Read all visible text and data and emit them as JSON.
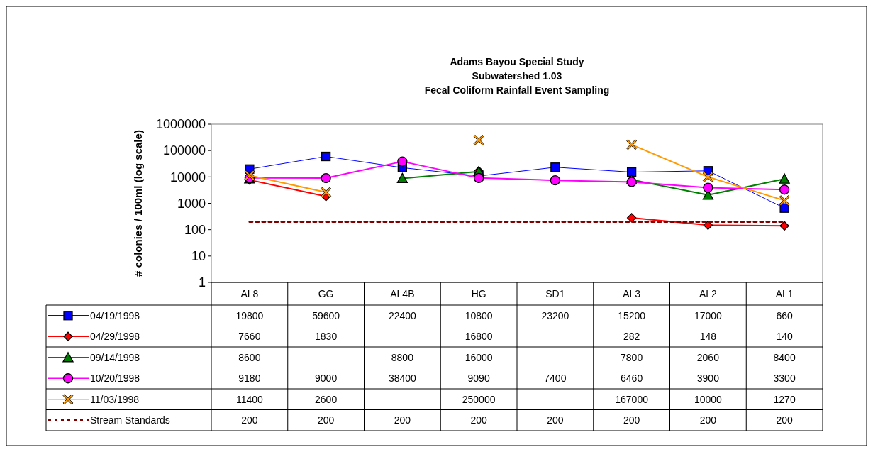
{
  "chart_data": {
    "type": "line",
    "title": "Adams Bayou Special Study\nSubwatershed 1.03\nFecal Coliform Rainfall Event Sampling",
    "ylabel": "# colonies / 100ml (log scale)",
    "categories": [
      "AL8",
      "GG",
      "AL4B",
      "HG",
      "SD1",
      "AL3",
      "AL2",
      "AL1"
    ],
    "series": [
      {
        "name": "04/19/1998",
        "color": "#0000ff",
        "marker": "square",
        "line_style": "solid",
        "values": [
          19800,
          59600,
          22400,
          10800,
          23200,
          15200,
          17000,
          660
        ]
      },
      {
        "name": "04/29/1998",
        "color": "#ff0000",
        "marker": "diamond",
        "line_style": "solid",
        "values": [
          7660,
          1830,
          null,
          16800,
          null,
          282,
          148,
          140
        ]
      },
      {
        "name": "09/14/1998",
        "color": "#008000",
        "marker": "triangle",
        "line_style": "solid",
        "values": [
          8600,
          null,
          8800,
          16000,
          null,
          7800,
          2060,
          8400
        ]
      },
      {
        "name": "10/20/1998",
        "color": "#ff00ff",
        "marker": "circle",
        "line_style": "solid",
        "values": [
          9180,
          9000,
          38400,
          9090,
          7400,
          6460,
          3900,
          3300
        ]
      },
      {
        "name": "11/03/1998",
        "color": "#ff9900",
        "marker": "cross",
        "line_style": "solid",
        "values": [
          11400,
          2600,
          null,
          250000,
          null,
          167000,
          10000,
          1270
        ]
      },
      {
        "name": "Stream Standards",
        "color": "#800000",
        "marker": "none",
        "line_style": "dotted",
        "values": [
          200,
          200,
          200,
          200,
          200,
          200,
          200,
          200
        ]
      }
    ],
    "log": true,
    "ylim": [
      1,
      1000000
    ],
    "yticks": [
      1,
      10,
      100,
      1000,
      10000,
      100000,
      1000000
    ],
    "grid": false,
    "legend": "bottom",
    "data_labels": true
  }
}
